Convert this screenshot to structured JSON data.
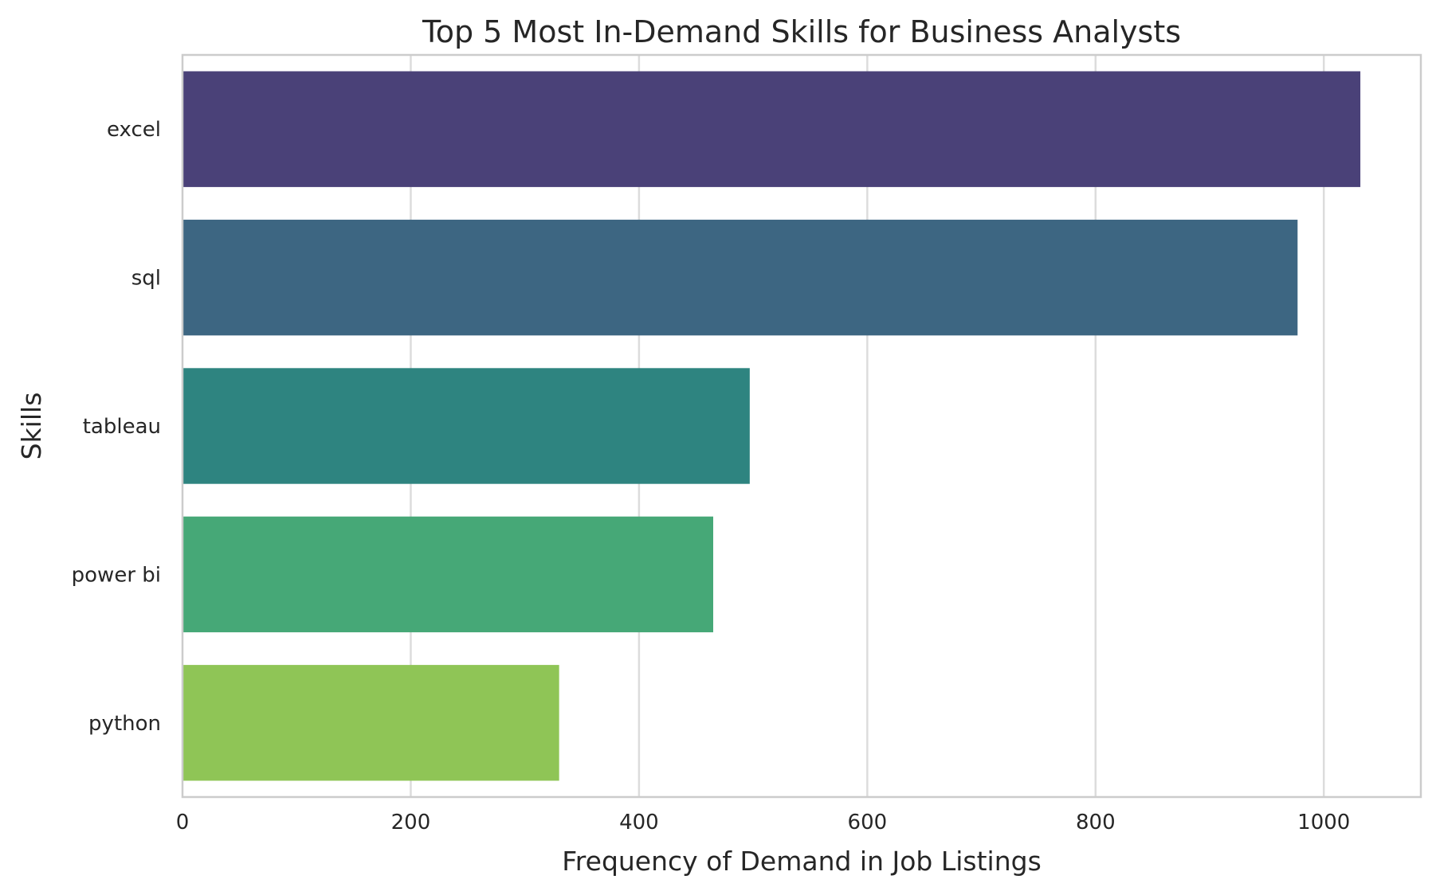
{
  "chart_data": {
    "type": "bar",
    "orientation": "horizontal",
    "title": "Top 5 Most In-Demand Skills for Business Analysts",
    "xlabel": "Frequency of Demand in Job Listings",
    "ylabel": "Skills",
    "categories": [
      "excel",
      "sql",
      "tableau",
      "power bi",
      "python"
    ],
    "values": [
      1032,
      977,
      497,
      465,
      330
    ],
    "colors": [
      "#4a4178",
      "#3d6682",
      "#2e8480",
      "#46a877",
      "#8fc556"
    ],
    "xlim": [
      0,
      1085
    ],
    "xticks": [
      0,
      200,
      400,
      600,
      800,
      1000
    ],
    "xtick_labels": [
      "0",
      "200",
      "400",
      "600",
      "800",
      "1000"
    ],
    "grid": true,
    "legend": "none"
  }
}
